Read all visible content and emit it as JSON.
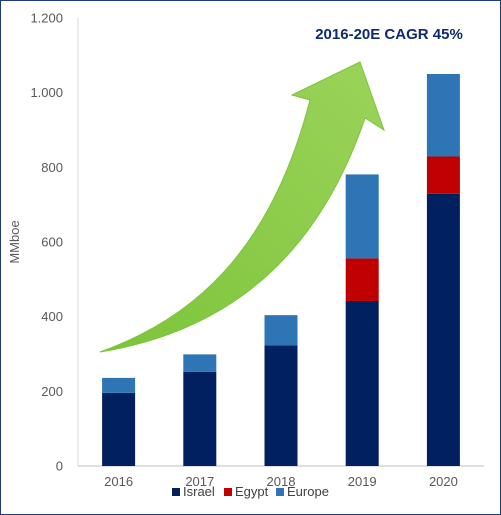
{
  "chart_data": {
    "type": "bar",
    "stacked": true,
    "categories": [
      "2016",
      "2017",
      "2018",
      "2019",
      "2020"
    ],
    "series": [
      {
        "name": "Israel",
        "color": "#002060",
        "values": [
          196,
          252,
          323,
          442,
          729
        ]
      },
      {
        "name": "Egypt",
        "color": "#c00000",
        "values": [
          0,
          0,
          0,
          114,
          100
        ]
      },
      {
        "name": "Europe",
        "color": "#2e75b6",
        "values": [
          40,
          47,
          81,
          225,
          221
        ]
      }
    ],
    "ylabel": "MMboe",
    "ylim": [
      0,
      1200
    ],
    "yticks": [
      0,
      200,
      400,
      600,
      800,
      1000,
      1200
    ],
    "ytick_labels": [
      "0",
      "200",
      "400",
      "600",
      "800",
      "1.000",
      "1.200"
    ],
    "annotation": "2016-20E CAGR 45%",
    "arrow_color": "#92d050",
    "legend_position": "bottom",
    "grid": false
  }
}
